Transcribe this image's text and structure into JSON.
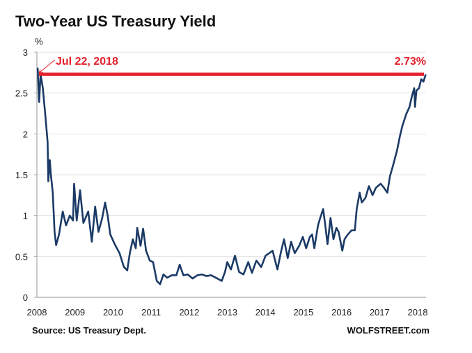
{
  "chart_data": {
    "type": "line",
    "title": "Two-Year US Treasury Yield",
    "ylabel": "%",
    "xlabel": "",
    "ylim": [
      0,
      3
    ],
    "xlim": [
      2008.0,
      2018.55
    ],
    "yticks": [
      "0",
      "0.5",
      "1",
      "1.5",
      "2",
      "2.5",
      "3"
    ],
    "xticks": [
      "2008",
      "2009",
      "2010",
      "2011",
      "2012",
      "2013",
      "2014",
      "2015",
      "2016",
      "2017",
      "2018"
    ],
    "grid": true,
    "line_color": "#1b3a66",
    "annotation": {
      "date_label": "Jul 22, 2018",
      "value_label": "2.73%",
      "value": 2.73,
      "color": "#e3212d"
    },
    "series": [
      {
        "points": [
          [
            2008.02,
            2.81
          ],
          [
            2008.06,
            2.39
          ],
          [
            2008.1,
            2.73
          ],
          [
            2008.16,
            2.56
          ],
          [
            2008.23,
            2.22
          ],
          [
            2008.29,
            1.9
          ],
          [
            2008.31,
            1.42
          ],
          [
            2008.35,
            1.68
          ],
          [
            2008.38,
            1.5
          ],
          [
            2008.43,
            1.28
          ],
          [
            2008.48,
            0.8
          ],
          [
            2008.52,
            0.64
          ],
          [
            2008.6,
            0.77
          ],
          [
            2008.7,
            1.05
          ],
          [
            2008.79,
            0.88
          ],
          [
            2008.89,
            1.0
          ],
          [
            2008.98,
            0.94
          ],
          [
            2009.01,
            1.39
          ],
          [
            2009.08,
            0.94
          ],
          [
            2009.17,
            1.31
          ],
          [
            2009.26,
            0.91
          ],
          [
            2009.39,
            1.05
          ],
          [
            2009.49,
            0.68
          ],
          [
            2009.58,
            1.11
          ],
          [
            2009.67,
            0.8
          ],
          [
            2009.77,
            0.97
          ],
          [
            2009.85,
            1.16
          ],
          [
            2009.92,
            1.0
          ],
          [
            2009.99,
            0.77
          ],
          [
            2010.11,
            0.65
          ],
          [
            2010.24,
            0.54
          ],
          [
            2010.36,
            0.37
          ],
          [
            2010.45,
            0.33
          ],
          [
            2010.52,
            0.54
          ],
          [
            2010.6,
            0.71
          ],
          [
            2010.68,
            0.6
          ],
          [
            2010.72,
            0.85
          ],
          [
            2010.81,
            0.63
          ],
          [
            2010.88,
            0.84
          ],
          [
            2010.96,
            0.57
          ],
          [
            2011.06,
            0.45
          ],
          [
            2011.15,
            0.43
          ],
          [
            2011.25,
            0.2
          ],
          [
            2011.34,
            0.16
          ],
          [
            2011.43,
            0.28
          ],
          [
            2011.53,
            0.24
          ],
          [
            2011.66,
            0.27
          ],
          [
            2011.78,
            0.27
          ],
          [
            2011.87,
            0.4
          ],
          [
            2011.97,
            0.27
          ],
          [
            2012.09,
            0.28
          ],
          [
            2012.22,
            0.23
          ],
          [
            2012.35,
            0.27
          ],
          [
            2012.47,
            0.28
          ],
          [
            2012.6,
            0.26
          ],
          [
            2012.72,
            0.27
          ],
          [
            2012.85,
            0.24
          ],
          [
            2013.01,
            0.2
          ],
          [
            2013.1,
            0.31
          ],
          [
            2013.16,
            0.43
          ],
          [
            2013.26,
            0.34
          ],
          [
            2013.37,
            0.51
          ],
          [
            2013.48,
            0.31
          ],
          [
            2013.6,
            0.28
          ],
          [
            2013.73,
            0.43
          ],
          [
            2013.83,
            0.3
          ],
          [
            2013.95,
            0.45
          ],
          [
            2014.08,
            0.37
          ],
          [
            2014.2,
            0.51
          ],
          [
            2014.3,
            0.54
          ],
          [
            2014.39,
            0.57
          ],
          [
            2014.52,
            0.34
          ],
          [
            2014.61,
            0.54
          ],
          [
            2014.7,
            0.71
          ],
          [
            2014.8,
            0.48
          ],
          [
            2014.89,
            0.68
          ],
          [
            2014.99,
            0.54
          ],
          [
            2015.11,
            0.63
          ],
          [
            2015.21,
            0.74
          ],
          [
            2015.3,
            0.6
          ],
          [
            2015.4,
            0.74
          ],
          [
            2015.46,
            0.77
          ],
          [
            2015.52,
            0.6
          ],
          [
            2015.62,
            0.88
          ],
          [
            2015.68,
            0.97
          ],
          [
            2015.76,
            1.08
          ],
          [
            2015.81,
            0.91
          ],
          [
            2015.88,
            0.65
          ],
          [
            2015.96,
            0.97
          ],
          [
            2016.04,
            0.71
          ],
          [
            2016.12,
            0.85
          ],
          [
            2016.18,
            0.8
          ],
          [
            2016.28,
            0.57
          ],
          [
            2016.34,
            0.71
          ],
          [
            2016.43,
            0.77
          ],
          [
            2016.53,
            0.82
          ],
          [
            2016.62,
            0.82
          ],
          [
            2016.67,
            1.08
          ],
          [
            2016.75,
            1.28
          ],
          [
            2016.81,
            1.16
          ],
          [
            2016.91,
            1.22
          ],
          [
            2017.0,
            1.36
          ],
          [
            2017.1,
            1.25
          ],
          [
            2017.19,
            1.34
          ],
          [
            2017.32,
            1.39
          ],
          [
            2017.41,
            1.34
          ],
          [
            2017.5,
            1.28
          ],
          [
            2017.57,
            1.48
          ],
          [
            2017.66,
            1.62
          ],
          [
            2017.76,
            1.79
          ],
          [
            2017.85,
            1.99
          ],
          [
            2017.91,
            2.1
          ],
          [
            2018.01,
            2.24
          ],
          [
            2018.1,
            2.33
          ],
          [
            2018.17,
            2.47
          ],
          [
            2018.23,
            2.56
          ],
          [
            2018.25,
            2.33
          ],
          [
            2018.29,
            2.53
          ],
          [
            2018.36,
            2.56
          ],
          [
            2018.42,
            2.67
          ],
          [
            2018.48,
            2.64
          ],
          [
            2018.54,
            2.73
          ]
        ]
      }
    ]
  },
  "footer": {
    "source": "Source: US Treasury Dept.",
    "brand": "WOLFSTREET.com"
  }
}
